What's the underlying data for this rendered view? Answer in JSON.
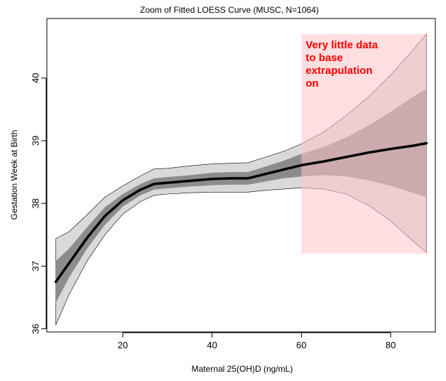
{
  "chart_data": {
    "type": "line",
    "title": "Zoom of Fitted LOESS Curve (MUSC, N=1064)",
    "xlabel": "Maternal 25(OH)D (ng/mL)",
    "ylabel": "Gestation Week at Birth",
    "xlim": [
      3,
      90
    ],
    "ylim": [
      35.95,
      40.95
    ],
    "x_ticks": [
      20,
      40,
      60,
      80
    ],
    "y_ticks": [
      36,
      37,
      38,
      39,
      40
    ],
    "grid": false,
    "x": [
      5,
      8,
      12,
      16,
      20,
      24,
      27,
      30,
      35,
      40,
      44,
      48,
      52,
      56,
      60,
      65,
      70,
      75,
      80,
      85,
      88
    ],
    "series": [
      {
        "name": "LOESS fit",
        "values": [
          36.75,
          37.05,
          37.45,
          37.8,
          38.05,
          38.22,
          38.31,
          38.33,
          38.36,
          38.39,
          38.4,
          38.4,
          38.47,
          38.54,
          38.61,
          38.67,
          38.74,
          38.81,
          38.87,
          38.92,
          38.96
        ]
      },
      {
        "name": "inner band lower",
        "values": [
          36.42,
          36.82,
          37.28,
          37.66,
          37.95,
          38.13,
          38.22,
          38.24,
          38.27,
          38.29,
          38.3,
          38.3,
          38.35,
          38.4,
          38.43,
          38.45,
          38.43,
          38.37,
          38.28,
          38.17,
          38.1
        ]
      },
      {
        "name": "inner band upper",
        "values": [
          37.08,
          37.28,
          37.62,
          37.94,
          38.15,
          38.31,
          38.4,
          38.42,
          38.45,
          38.49,
          38.5,
          38.5,
          38.59,
          38.68,
          38.79,
          38.9,
          39.05,
          39.24,
          39.46,
          39.7,
          39.83
        ]
      },
      {
        "name": "outer band lower",
        "values": [
          36.06,
          36.55,
          37.08,
          37.5,
          37.83,
          38.03,
          38.13,
          38.15,
          38.17,
          38.18,
          38.18,
          38.18,
          38.21,
          38.23,
          38.25,
          38.23,
          38.15,
          37.97,
          37.72,
          37.4,
          37.22
        ]
      },
      {
        "name": "outer band upper",
        "values": [
          37.44,
          37.55,
          37.82,
          38.1,
          38.28,
          38.44,
          38.55,
          38.56,
          38.6,
          38.63,
          38.64,
          38.65,
          38.74,
          38.83,
          38.95,
          39.14,
          39.4,
          39.7,
          40.05,
          40.45,
          40.7
        ]
      }
    ],
    "annotation": {
      "lines": [
        "Very little data",
        "to base",
        "extrapulation",
        "on"
      ],
      "x_range": [
        60,
        88
      ],
      "y_range": [
        37.2,
        40.7
      ]
    }
  },
  "colors": {
    "outer_band": "#d9d9d9",
    "inner_band": "#8c8c8c",
    "fit_line": "#000000",
    "highlight": "#ffc4c7",
    "annotation_text": "#ff0000"
  }
}
